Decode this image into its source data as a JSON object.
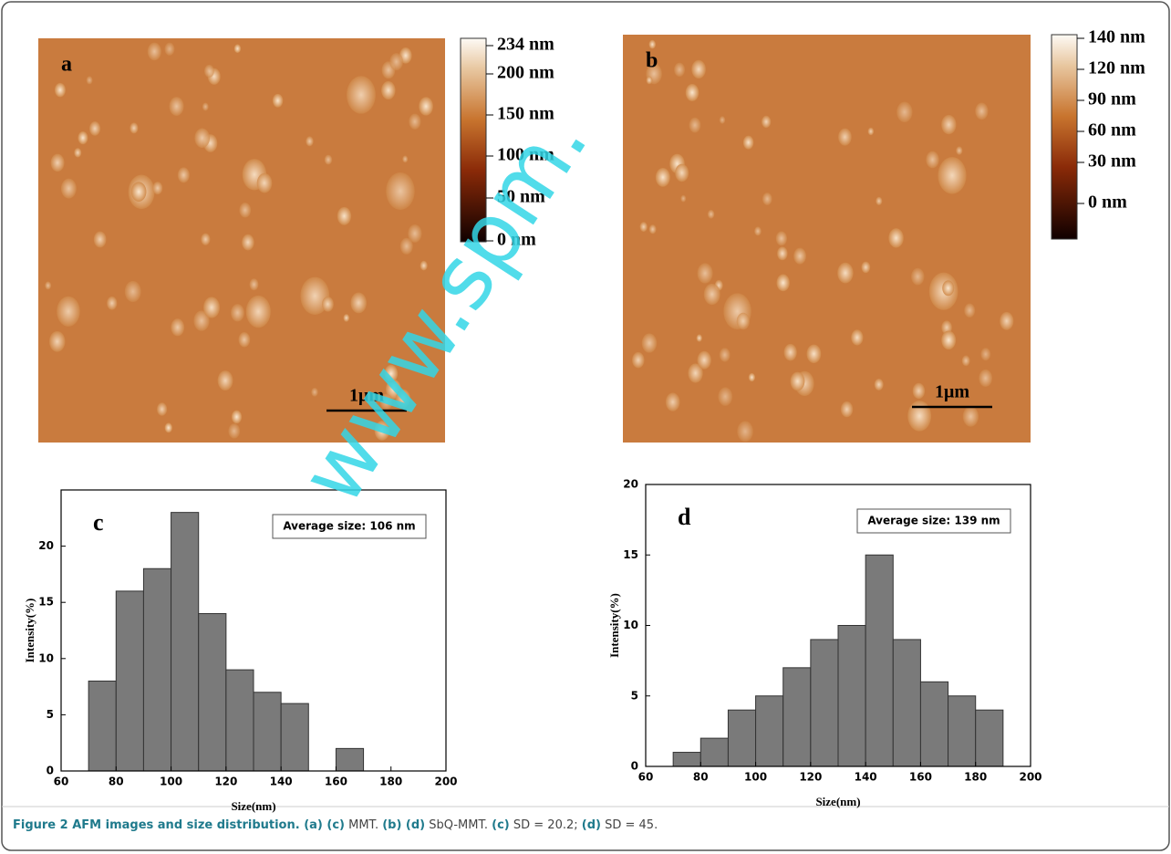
{
  "afm_panels": [
    {
      "label": "a",
      "scale_bar": "1μm",
      "colorbar_labels": [
        "234 nm",
        "200 nm",
        "150 nm",
        "100 nm",
        "50 nm",
        "0 nm"
      ]
    },
    {
      "label": "b",
      "scale_bar": "1μm",
      "colorbar_labels": [
        "140 nm",
        "120 nm",
        "90 nm",
        "60 nm",
        "30 nm",
        "0 nm"
      ]
    }
  ],
  "watermark": "www.spm.",
  "chart_data": [
    {
      "type": "histogram",
      "panel_label": "c",
      "annotation": "Average size: 106 nm",
      "x_label": "Size(nm)",
      "y_label": "Intensity(%)",
      "color": "#7a7a7a",
      "bins": [
        70,
        80,
        90,
        100,
        110,
        120,
        130,
        140,
        150,
        160,
        170
      ],
      "values": [
        8,
        16,
        18,
        23,
        14,
        9,
        7,
        6,
        0,
        2
      ],
      "xlim": [
        60,
        200
      ],
      "xticks": [
        60,
        80,
        100,
        120,
        140,
        160,
        180,
        200
      ],
      "ylim": [
        0,
        25
      ],
      "yticks": [
        0,
        5,
        10,
        15,
        20
      ]
    },
    {
      "type": "histogram",
      "panel_label": "d",
      "annotation": "Average size: 139 nm",
      "x_label": "Size(nm)",
      "y_label": "Intensity(%)",
      "color": "#7a7a7a",
      "bins": [
        70,
        80,
        90,
        100,
        110,
        120,
        130,
        140,
        150,
        160,
        170,
        180,
        190
      ],
      "values": [
        1,
        2,
        4,
        5,
        7,
        9,
        10,
        15,
        9,
        6,
        5,
        4
      ],
      "xlim": [
        60,
        200
      ],
      "xticks": [
        60,
        80,
        100,
        120,
        140,
        160,
        180,
        200
      ],
      "ylim": [
        0,
        20
      ],
      "yticks": [
        0,
        5,
        10,
        15,
        20
      ]
    }
  ],
  "caption": [
    {
      "text": "Figure 2 AFM images and size distribution.",
      "bold": true
    },
    {
      "text": " (a) (c)",
      "bold": true
    },
    {
      "text": " MMT. ",
      "bold": false
    },
    {
      "text": "(b) (d)",
      "bold": true
    },
    {
      "text": " SbQ-MMT. ",
      "bold": false
    },
    {
      "text": "(c)",
      "bold": true
    },
    {
      "text": " SD = 20.2; ",
      "bold": false
    },
    {
      "text": "(d)",
      "bold": true
    },
    {
      "text": " SD = 45.",
      "bold": false
    }
  ]
}
